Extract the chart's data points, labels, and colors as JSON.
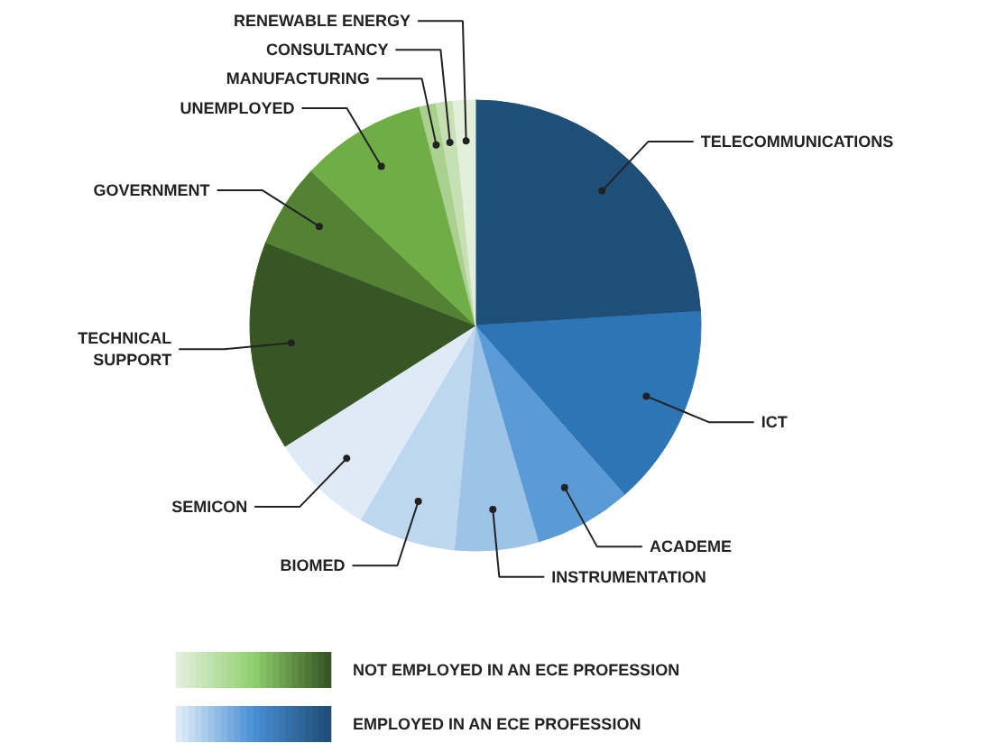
{
  "chart_data": {
    "type": "pie",
    "categories": [
      "TELECOMMUNICATIONS",
      "ICT",
      "ACADEME",
      "INSTRUMENTATION",
      "BIOMED",
      "SEMICON",
      "TECHNICAL SUPPORT",
      "GOVERNMENT",
      "UNEMPLOYED",
      "MANUFACTURING",
      "CONSULTANCY",
      "RENEWABLE ENERGY"
    ],
    "values": [
      24,
      14.5,
      7,
      6,
      7,
      7.5,
      15,
      6,
      9,
      1.2,
      1.2,
      1.6
    ],
    "colors": [
      "#1f4e79",
      "#2e75b6",
      "#5b9bd5",
      "#9dc3e6",
      "#bdd7ee",
      "#deebf7",
      "#375623",
      "#548235",
      "#70ad47",
      "#a9d08e",
      "#c6e0b4",
      "#e2efda"
    ],
    "annotations": [
      "NOT EMPLOYED IN AN ECE PROFESSION",
      "EMPLOYED IN AN ECE PROFESSION"
    ]
  }
}
